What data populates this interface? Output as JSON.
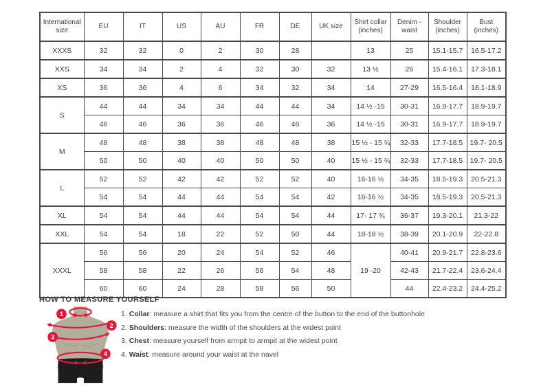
{
  "table": {
    "headers": [
      "International size",
      "EU",
      "IT",
      "US",
      "AU",
      "FR",
      "DE",
      "UK size",
      "Shirt collar (inches)",
      "Denim - waist",
      "Shoulder (inches)",
      "Bust (inches)"
    ],
    "groups": [
      {
        "size": "XXXS",
        "rows": [
          [
            "32",
            "32",
            "0",
            "2",
            "30",
            "28",
            "",
            "13",
            "25",
            "15.1-15.7",
            "16.5-17.2"
          ]
        ]
      },
      {
        "size": "XXS",
        "rows": [
          [
            "34",
            "34",
            "2",
            "4",
            "32",
            "30",
            "32",
            "13 ½",
            "26",
            "15.4-16.1",
            "17.3-18.1"
          ]
        ]
      },
      {
        "size": "XS",
        "rows": [
          [
            "36",
            "36",
            "4",
            "6",
            "34",
            "32",
            "34",
            "14",
            "27-29",
            "16.5-16.4",
            "18.1-18.9"
          ]
        ]
      },
      {
        "size": "S",
        "rows": [
          [
            "44",
            "44",
            "34",
            "34",
            "44",
            "44",
            "34",
            "14 ½ -15",
            "30-31",
            "16.9-17.7",
            "18.9-19.7"
          ],
          [
            "46",
            "46",
            "36",
            "36",
            "46",
            "46",
            "36",
            "14 ½ -15",
            "30-31",
            "16.9-17.7",
            "18.9-19.7"
          ]
        ]
      },
      {
        "size": "M",
        "rows": [
          [
            "48",
            "48",
            "38",
            "38",
            "48",
            "48",
            "38",
            "15 ½ - 15 ¾",
            "32-33",
            "17.7-18.5",
            "19.7- 20.5"
          ],
          [
            "50",
            "50",
            "40",
            "40",
            "50",
            "50",
            "40",
            "15 ½ - 15 ¾",
            "32-33",
            "17.7-18.5",
            "19.7- 20.5"
          ]
        ]
      },
      {
        "size": "L",
        "rows": [
          [
            "52",
            "52",
            "42",
            "42",
            "52",
            "52",
            "40",
            "16-16 ½",
            "34-35",
            "18.5-19.3",
            "20.5-21.3"
          ],
          [
            "54",
            "54",
            "44",
            "44",
            "54",
            "54",
            "42",
            "16-16 ½",
            "34-35",
            "18.5-19.3",
            "20.5-21.3"
          ]
        ]
      },
      {
        "size": "XL",
        "rows": [
          [
            "54",
            "54",
            "44",
            "44",
            "54",
            "54",
            "44",
            "17- 17 ¾",
            "36-37",
            "19.3-20.1",
            "21.3-22"
          ]
        ]
      },
      {
        "size": "XXL",
        "rows": [
          [
            "54",
            "54",
            "18",
            "22",
            "52",
            "50",
            "44",
            "18-18 ½",
            "38-39",
            "20.1-20.9",
            "22-22.8"
          ]
        ]
      },
      {
        "size": "XXXL",
        "collar_merged": "19 -20",
        "rows": [
          [
            "56",
            "56",
            "20",
            "24",
            "54",
            "52",
            "46",
            "40-41",
            "20.9-21.7",
            "22.8-23.6"
          ],
          [
            "58",
            "58",
            "22",
            "26",
            "56",
            "54",
            "48",
            "42-43",
            "21.7-22.4",
            "23.6-24.4"
          ],
          [
            "60",
            "60",
            "24",
            "28",
            "58",
            "56",
            "50",
            "44",
            "22.4-23.2",
            "24.4-25.2"
          ]
        ]
      }
    ]
  },
  "measure": {
    "heading": "HOW TO MEASURE YOURSELF",
    "steps": [
      {
        "num": "1.",
        "label": "Collar",
        "text": ": measure a shirt that fits you from the centre of the button to the end of the buttonhole"
      },
      {
        "num": "2.",
        "label": "Shoulders",
        "text": ": measure the width of the shoulders at the widest point"
      },
      {
        "num": "3.",
        "label": "Chest",
        "text": ": measure yourself from armpit to armpit at the widest point"
      },
      {
        "num": "4.",
        "label": "Waist",
        "text": ": measure around your waist at the navel"
      }
    ]
  },
  "figure": {
    "markers": [
      "1",
      "2",
      "3",
      "4"
    ],
    "colors": {
      "accent_red": "#e31839",
      "torso": "#b3ae9b",
      "shorts": "#1d1d1d",
      "border": "#4a4a4a"
    }
  }
}
